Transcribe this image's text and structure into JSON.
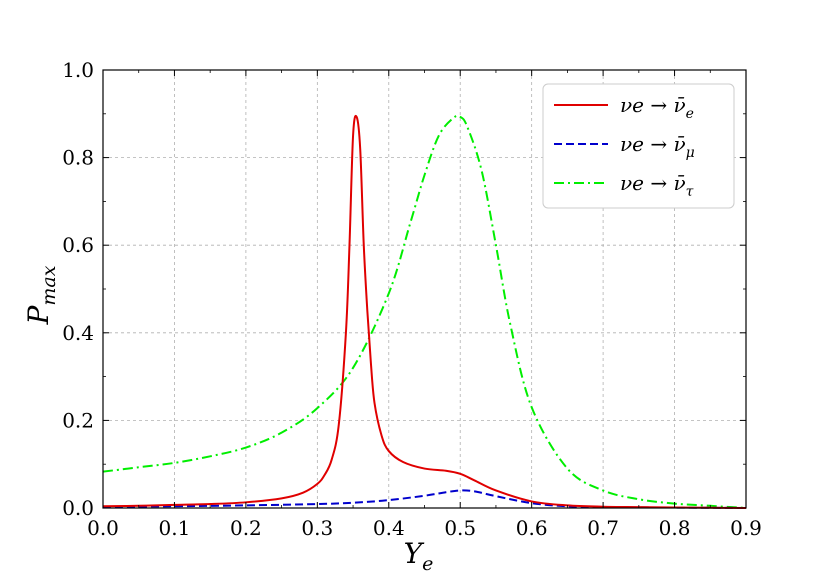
{
  "chart_data": {
    "type": "line",
    "xlabel": "Y",
    "xlabel_sub": "e",
    "ylabel": "P",
    "ylabel_sub": "max",
    "xlim": [
      0.0,
      0.9
    ],
    "ylim": [
      0.0,
      1.0
    ],
    "xticks": [
      "0.0",
      "0.1",
      "0.2",
      "0.3",
      "0.4",
      "0.5",
      "0.6",
      "0.7",
      "0.8",
      "0.9"
    ],
    "yticks": [
      "0.0",
      "0.2",
      "0.4",
      "0.6",
      "0.8",
      "1.0"
    ],
    "grid": true,
    "legend_position": "top-right",
    "series": [
      {
        "name": "ν_e → ν̄_e",
        "legend_base": "νe → ν̄",
        "legend_sub": "e",
        "color": "#e00000",
        "style": "solid",
        "x": [
          0.0,
          0.05,
          0.1,
          0.15,
          0.2,
          0.25,
          0.28,
          0.3,
          0.31,
          0.32,
          0.33,
          0.34,
          0.345,
          0.35,
          0.355,
          0.36,
          0.365,
          0.37,
          0.375,
          0.38,
          0.39,
          0.4,
          0.42,
          0.45,
          0.48,
          0.5,
          0.52,
          0.55,
          0.6,
          0.65,
          0.7,
          0.75,
          0.8,
          0.85,
          0.9
        ],
        "y": [
          0.004,
          0.005,
          0.007,
          0.009,
          0.013,
          0.022,
          0.035,
          0.055,
          0.075,
          0.11,
          0.19,
          0.4,
          0.6,
          0.85,
          0.893,
          0.82,
          0.6,
          0.45,
          0.33,
          0.24,
          0.165,
          0.13,
          0.105,
          0.09,
          0.085,
          0.078,
          0.063,
          0.04,
          0.015,
          0.006,
          0.003,
          0.002,
          0.001,
          0.0005,
          0.0
        ]
      },
      {
        "name": "ν_e → ν̄_μ",
        "legend_base": "νe → ν̄",
        "legend_sub": "μ",
        "color": "#0000cc",
        "style": "dashed",
        "x": [
          0.0,
          0.1,
          0.2,
          0.3,
          0.35,
          0.4,
          0.45,
          0.48,
          0.5,
          0.52,
          0.55,
          0.6,
          0.65,
          0.7,
          0.8,
          0.9
        ],
        "y": [
          0.003,
          0.004,
          0.006,
          0.009,
          0.012,
          0.018,
          0.028,
          0.036,
          0.04,
          0.038,
          0.027,
          0.011,
          0.004,
          0.002,
          0.001,
          0.0
        ]
      },
      {
        "name": "ν_e → ν̄_τ",
        "legend_base": "νe → ν̄",
        "legend_sub": "τ",
        "color": "#00ee00",
        "style": "dashdot",
        "x": [
          0.0,
          0.05,
          0.1,
          0.15,
          0.2,
          0.25,
          0.3,
          0.35,
          0.4,
          0.43,
          0.45,
          0.47,
          0.49,
          0.5,
          0.51,
          0.53,
          0.55,
          0.57,
          0.6,
          0.65,
          0.7,
          0.75,
          0.8,
          0.85,
          0.9
        ],
        "y": [
          0.083,
          0.093,
          0.103,
          0.118,
          0.138,
          0.172,
          0.228,
          0.32,
          0.49,
          0.65,
          0.76,
          0.85,
          0.89,
          0.893,
          0.87,
          0.77,
          0.6,
          0.42,
          0.23,
          0.09,
          0.04,
          0.02,
          0.01,
          0.005,
          0.0
        ]
      }
    ]
  }
}
